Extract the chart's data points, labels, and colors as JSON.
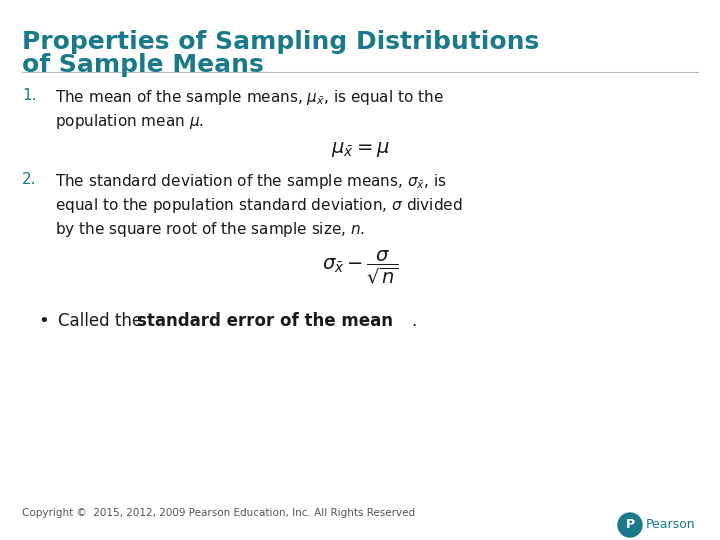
{
  "title_line1": "Properties of Sampling Distributions",
  "title_line2": "of Sample Means",
  "title_color": "#1a7a8a",
  "title_fontsize": 18,
  "body_fontsize": 11,
  "formula_fontsize": 12,
  "body_color": "#1a1a1a",
  "number_color": "#1a7a8a",
  "bg_color": "#ffffff",
  "copyright_text": "Copyright ©  2015, 2012, 2009 Pearson Education, Inc. All Rights Reserved",
  "copyright_fontsize": 7.5,
  "pearson_color": "#1a7a8a"
}
